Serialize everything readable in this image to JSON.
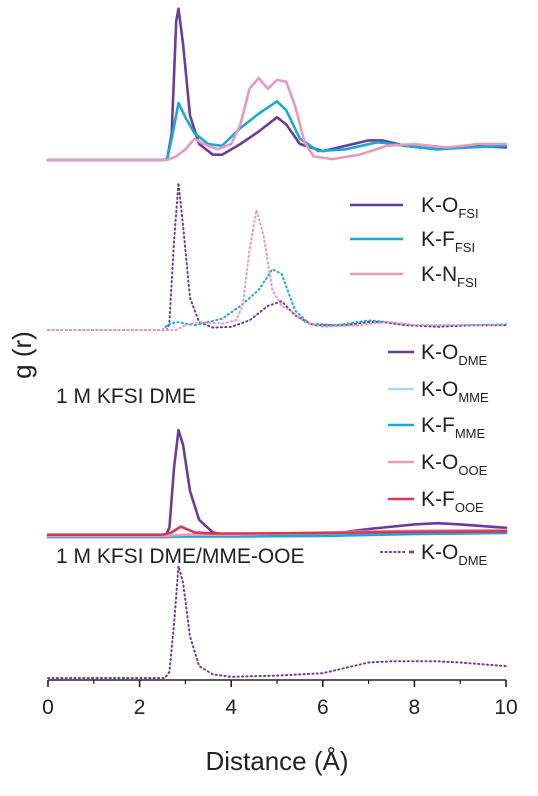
{
  "chart_data": {
    "type": "line",
    "xlabel": "Distance (Å)",
    "ylabel": "g (r)",
    "xlim": [
      0,
      10
    ],
    "x_ticks": [
      "0",
      "2",
      "4",
      "6",
      "8",
      "10"
    ],
    "grid": false,
    "legend_placement": "right, inside each panel",
    "panels": [
      {
        "label": "",
        "series": [
          {
            "name": "K-O",
            "sub": "FSI",
            "color": "#6a3d9a",
            "dash": "solid",
            "points": [
              [
                0,
                0
              ],
              [
                2.5,
                0
              ],
              [
                2.6,
                0.02
              ],
              [
                2.7,
                1.5
              ],
              [
                2.8,
                7.8
              ],
              [
                2.85,
                8.5
              ],
              [
                2.95,
                6.5
              ],
              [
                3.1,
                2.5
              ],
              [
                3.3,
                0.9
              ],
              [
                3.6,
                0.3
              ],
              [
                3.8,
                0.3
              ],
              [
                4.2,
                0.9
              ],
              [
                4.6,
                1.6
              ],
              [
                5.0,
                2.4
              ],
              [
                5.2,
                2.0
              ],
              [
                5.5,
                0.9
              ],
              [
                6.0,
                0.5
              ],
              [
                6.5,
                0.8
              ],
              [
                7.0,
                1.1
              ],
              [
                7.3,
                1.1
              ],
              [
                7.8,
                0.8
              ],
              [
                8.5,
                0.6
              ],
              [
                9.3,
                0.8
              ],
              [
                10,
                0.7
              ]
            ]
          },
          {
            "name": "K-F",
            "sub": "FSI",
            "color": "#1ba7d8",
            "dash": "solid",
            "points": [
              [
                0,
                0
              ],
              [
                2.5,
                0
              ],
              [
                2.6,
                0.05
              ],
              [
                2.7,
                1.2
              ],
              [
                2.85,
                3.2
              ],
              [
                3.0,
                2.4
              ],
              [
                3.2,
                1.5
              ],
              [
                3.5,
                0.9
              ],
              [
                3.8,
                0.8
              ],
              [
                4.2,
                1.8
              ],
              [
                4.6,
                2.6
              ],
              [
                5.0,
                3.3
              ],
              [
                5.2,
                2.8
              ],
              [
                5.5,
                1.2
              ],
              [
                5.9,
                0.5
              ],
              [
                6.5,
                0.6
              ],
              [
                7.2,
                1.0
              ],
              [
                7.8,
                0.8
              ],
              [
                8.5,
                0.6
              ],
              [
                9.2,
                0.7
              ],
              [
                10,
                0.8
              ]
            ]
          },
          {
            "name": "K-N",
            "sub": "FSI",
            "color": "#e89abd",
            "dash": "solid",
            "points": [
              [
                0,
                0
              ],
              [
                2.6,
                0
              ],
              [
                2.8,
                0.2
              ],
              [
                3.0,
                0.6
              ],
              [
                3.2,
                1.2
              ],
              [
                3.4,
                0.9
              ],
              [
                3.7,
                0.6
              ],
              [
                4.0,
                0.9
              ],
              [
                4.2,
                2.0
              ],
              [
                4.4,
                4.0
              ],
              [
                4.6,
                4.6
              ],
              [
                4.8,
                4.0
              ],
              [
                5.0,
                4.5
              ],
              [
                5.2,
                4.4
              ],
              [
                5.4,
                3.0
              ],
              [
                5.6,
                1.0
              ],
              [
                5.8,
                0.2
              ],
              [
                6.2,
                0.05
              ],
              [
                6.8,
                0.3
              ],
              [
                7.4,
                0.8
              ],
              [
                8.0,
                0.9
              ],
              [
                8.7,
                0.7
              ],
              [
                9.4,
                0.9
              ],
              [
                10,
                0.9
              ]
            ]
          }
        ]
      },
      {
        "label": "1 M KFSI DME",
        "series": [
          {
            "name": "K-O",
            "sub": "FSI",
            "color": "#6a3d9a",
            "dash": "dot",
            "points": [
              [
                0,
                0
              ],
              [
                2.6,
                0
              ],
              [
                2.65,
                0.5
              ],
              [
                2.75,
                5.5
              ],
              [
                2.85,
                9.2
              ],
              [
                2.95,
                6.5
              ],
              [
                3.1,
                2.0
              ],
              [
                3.3,
                0.5
              ],
              [
                3.6,
                0.15
              ],
              [
                4.0,
                0.2
              ],
              [
                4.4,
                0.6
              ],
              [
                4.8,
                1.5
              ],
              [
                5.1,
                1.8
              ],
              [
                5.4,
                0.9
              ],
              [
                5.8,
                0.3
              ],
              [
                6.5,
                0.3
              ],
              [
                7.0,
                0.5
              ],
              [
                7.3,
                0.5
              ],
              [
                7.8,
                0.3
              ],
              [
                8.5,
                0.2
              ],
              [
                9.3,
                0.3
              ],
              [
                10,
                0.3
              ]
            ]
          },
          {
            "name": "K-F",
            "sub": "FSI",
            "color": "#1ba7d8",
            "dash": "dot",
            "points": [
              [
                0,
                0
              ],
              [
                2.5,
                0
              ],
              [
                2.6,
                0.3
              ],
              [
                2.8,
                0.5
              ],
              [
                3.2,
                0.3
              ],
              [
                3.8,
                0.7
              ],
              [
                4.2,
                1.5
              ],
              [
                4.6,
                2.5
              ],
              [
                4.9,
                3.8
              ],
              [
                5.1,
                3.5
              ],
              [
                5.4,
                1.2
              ],
              [
                5.7,
                0.4
              ],
              [
                6.3,
                0.3
              ],
              [
                7.0,
                0.6
              ],
              [
                7.4,
                0.5
              ],
              [
                8.0,
                0.3
              ],
              [
                9.0,
                0.3
              ],
              [
                10,
                0.35
              ]
            ]
          },
          {
            "name": "K-N",
            "sub": "FSI",
            "color": "#e89abd",
            "dash": "dot",
            "points": [
              [
                0,
                0
              ],
              [
                2.8,
                0
              ],
              [
                3.0,
                0.3
              ],
              [
                3.3,
                0.5
              ],
              [
                3.8,
                0.4
              ],
              [
                4.1,
                0.6
              ],
              [
                4.25,
                1.5
              ],
              [
                4.4,
                5.0
              ],
              [
                4.55,
                7.5
              ],
              [
                4.7,
                6.0
              ],
              [
                4.9,
                2.5
              ],
              [
                5.1,
                1.5
              ],
              [
                5.3,
                1.2
              ],
              [
                5.6,
                0.5
              ],
              [
                6.0,
                0.2
              ],
              [
                6.8,
                0.3
              ],
              [
                7.4,
                0.5
              ],
              [
                8.0,
                0.3
              ],
              [
                9.0,
                0.3
              ],
              [
                10,
                0.3
              ]
            ]
          }
        ]
      },
      {
        "label": "1 M KFSI DME/MME-OOE",
        "series": [
          {
            "name": "K-O",
            "sub": "DME",
            "color": "#6a3d9a",
            "dash": "solid",
            "points": [
              [
                0,
                0
              ],
              [
                2.55,
                0
              ],
              [
                2.65,
                0.8
              ],
              [
                2.75,
                6.0
              ],
              [
                2.85,
                9.3
              ],
              [
                2.95,
                8.0
              ],
              [
                3.1,
                4.0
              ],
              [
                3.3,
                1.5
              ],
              [
                3.6,
                0.4
              ],
              [
                4.0,
                0.1
              ],
              [
                5.0,
                0.1
              ],
              [
                6.0,
                0.2
              ],
              [
                7.0,
                0.7
              ],
              [
                8.0,
                1.1
              ],
              [
                8.5,
                1.2
              ],
              [
                9.0,
                1.1
              ],
              [
                10,
                0.8
              ]
            ]
          },
          {
            "name": "K-O",
            "sub": "MME",
            "color": "#a8dcf2",
            "dash": "solid",
            "points": [
              [
                0,
                0
              ],
              [
                2.6,
                0
              ],
              [
                3.0,
                0.05
              ],
              [
                4.0,
                0.05
              ],
              [
                6.0,
                0.15
              ],
              [
                8.0,
                0.3
              ],
              [
                10,
                0.4
              ]
            ]
          },
          {
            "name": "K-F",
            "sub": "MME",
            "color": "#1ba7d8",
            "dash": "solid",
            "points": [
              [
                0,
                0
              ],
              [
                2.6,
                0
              ],
              [
                3.0,
                0.05
              ],
              [
                4.0,
                0.05
              ],
              [
                6.0,
                0.1
              ],
              [
                8.0,
                0.25
              ],
              [
                10,
                0.35
              ]
            ]
          },
          {
            "name": "K-O",
            "sub": "OOE",
            "color": "#e89abd",
            "dash": "solid",
            "points": [
              [
                0,
                0.1
              ],
              [
                2.6,
                0.1
              ],
              [
                3.0,
                0.2
              ],
              [
                4.0,
                0.2
              ],
              [
                6.0,
                0.4
              ],
              [
                8.0,
                0.55
              ],
              [
                10,
                0.6
              ]
            ]
          },
          {
            "name": "K-F",
            "sub": "OOE",
            "color": "#d7384f",
            "dash": "solid",
            "points": [
              [
                0,
                0.2
              ],
              [
                2.5,
                0.2
              ],
              [
                2.7,
                0.4
              ],
              [
                2.9,
                0.9
              ],
              [
                3.2,
                0.4
              ],
              [
                3.6,
                0.3
              ],
              [
                4.0,
                0.3
              ],
              [
                6.0,
                0.35
              ],
              [
                8.0,
                0.45
              ],
              [
                10,
                0.5
              ]
            ]
          }
        ]
      },
      {
        "label": "1 M KFSI DME",
        "series": [
          {
            "name": "K-O",
            "sub": "DME",
            "color": "#6a3d9a",
            "dash": "dot",
            "points": [
              [
                0,
                0
              ],
              [
                2.55,
                0
              ],
              [
                2.65,
                0.5
              ],
              [
                2.75,
                4.5
              ],
              [
                2.85,
                9.4
              ],
              [
                2.95,
                8.0
              ],
              [
                3.1,
                3.5
              ],
              [
                3.3,
                1.0
              ],
              [
                3.6,
                0.3
              ],
              [
                4.0,
                0.1
              ],
              [
                5.0,
                0.2
              ],
              [
                6.0,
                0.4
              ],
              [
                7.0,
                1.3
              ],
              [
                7.5,
                1.4
              ],
              [
                8.5,
                1.4
              ],
              [
                9.0,
                1.3
              ],
              [
                10,
                1.0
              ]
            ]
          }
        ]
      }
    ]
  }
}
